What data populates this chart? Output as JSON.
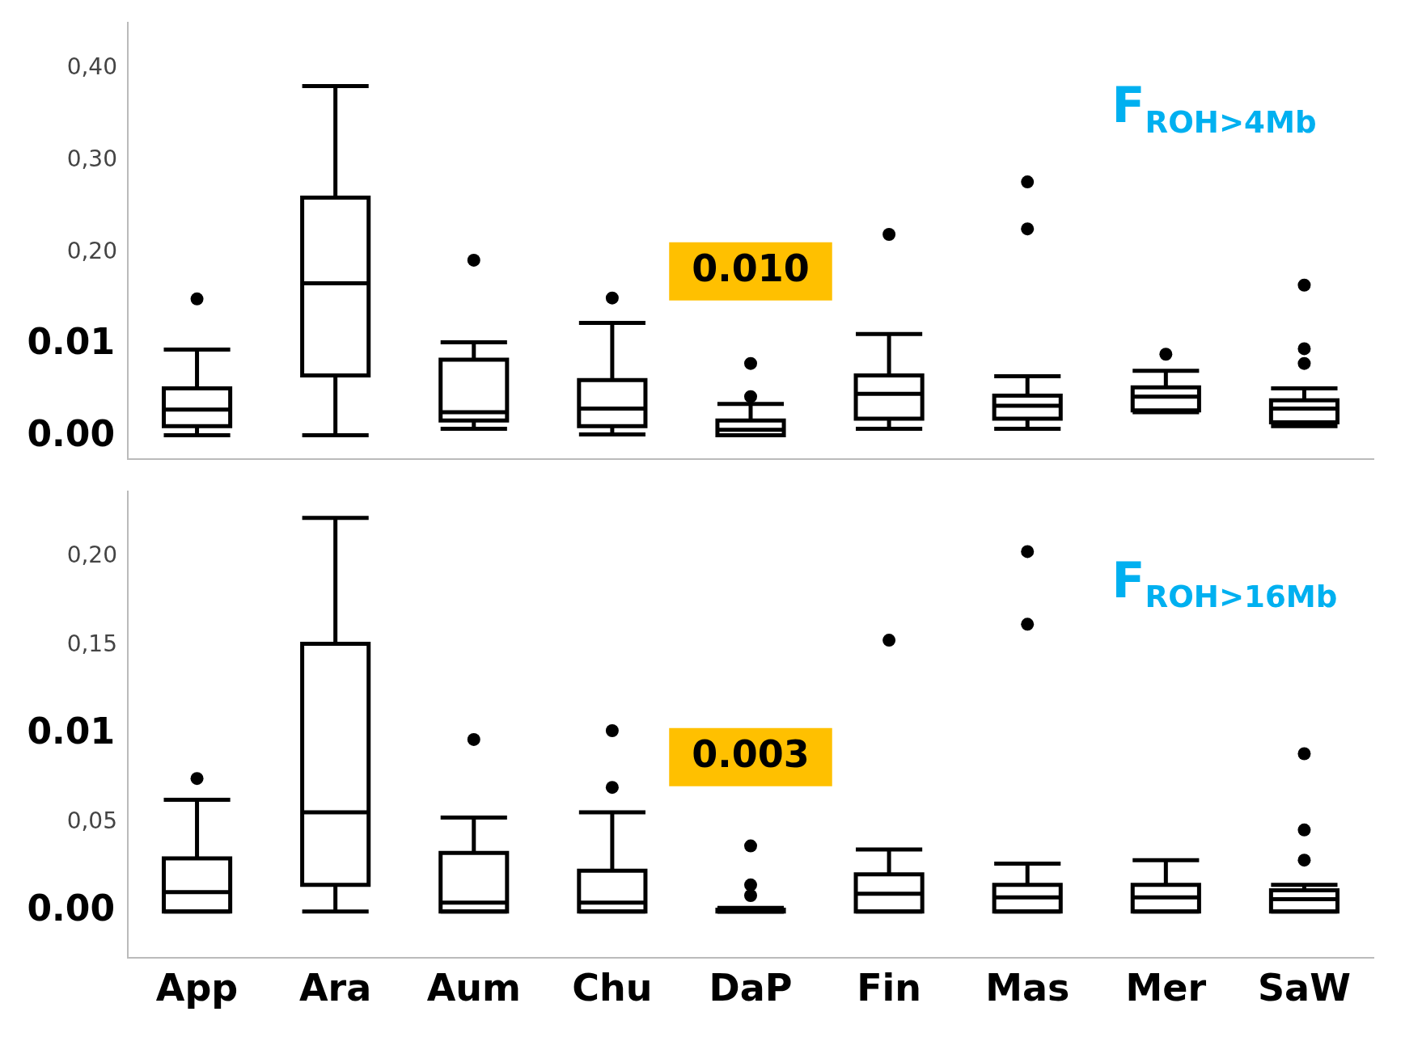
{
  "chart_data": [
    {
      "type": "box",
      "tick_labels": "y",
      "ylim": [
        -0.024,
        0.45
      ],
      "yticks": [
        {
          "value": 0.2,
          "label": "0,20"
        },
        {
          "value": 0.3,
          "label": "0,30"
        },
        {
          "value": 0.4,
          "label": "0,40"
        }
      ],
      "grid": false,
      "annotations": [
        "0.010",
        "F$_{ROH>4Mb}$",
        "0.01",
        "0.00"
      ],
      "boxes": [
        {
          "low": 0.002,
          "q1": 0.012,
          "median": 0.03,
          "q3": 0.053,
          "high": 0.095,
          "outliers": [
            0.15
          ]
        },
        {
          "low": 0.002,
          "q1": 0.067,
          "median": 0.167,
          "q3": 0.26,
          "high": 0.381
        },
        {
          "low": 0.009,
          "q1": 0.018,
          "median": 0.027,
          "q3": 0.084,
          "high": 0.103,
          "outliers": [
            0.192
          ]
        },
        {
          "low": 0.003,
          "q1": 0.012,
          "median": 0.031,
          "q3": 0.062,
          "high": 0.124,
          "outliers": [
            0.151
          ]
        },
        {
          "low": 0.002,
          "q1": 0.002,
          "median": 0.008,
          "q3": 0.018,
          "high": 0.036,
          "outliers": [
            0.08,
            0.044
          ]
        },
        {
          "low": 0.009,
          "q1": 0.02,
          "median": 0.047,
          "q3": 0.067,
          "high": 0.112,
          "outliers": [
            0.22
          ]
        },
        {
          "low": 0.009,
          "q1": 0.02,
          "median": 0.034,
          "q3": 0.045,
          "high": 0.066,
          "outliers": [
            0.226,
            0.277
          ]
        },
        {
          "low": 0.027,
          "q1": 0.029,
          "median": 0.044,
          "q3": 0.054,
          "high": 0.072,
          "outliers": [
            0.09
          ]
        },
        {
          "low": 0.012,
          "q1": 0.016,
          "median": 0.031,
          "q3": 0.04,
          "high": 0.053,
          "outliers": [
            0.165,
            0.096,
            0.08
          ]
        }
      ]
    },
    {
      "type": "box",
      "categories": [
        "App",
        "Ara",
        "Aum",
        "Chu",
        "DaP",
        "Fin",
        "Mas",
        "Mer",
        "SaW"
      ],
      "ylim": [
        -0.026,
        0.237
      ],
      "yticks": [
        {
          "value": 0.05,
          "label": "0,05"
        },
        {
          "value": 0.15,
          "label": "0,15"
        },
        {
          "value": 0.2,
          "label": "0,20"
        }
      ],
      "grid": false,
      "annotations": [
        "0.003",
        "F$_{ROH>16Mb}$",
        "0.01",
        "0.00"
      ],
      "boxes": [
        {
          "low": 0,
          "q1": 0,
          "median": 0.011,
          "q3": 0.03,
          "high": 0.063,
          "outliers": [
            0.075
          ]
        },
        {
          "low": 0,
          "q1": 0.015,
          "median": 0.056,
          "q3": 0.151,
          "high": 0.222
        },
        {
          "low": 0,
          "q1": 0,
          "median": 0.005,
          "q3": 0.033,
          "high": 0.053,
          "outliers": [
            0.097
          ]
        },
        {
          "low": 0,
          "q1": 0,
          "median": 0.005,
          "q3": 0.023,
          "high": 0.056,
          "outliers": [
            0.102,
            0.07
          ]
        },
        {
          "low": 0,
          "q1": 0,
          "median": 0,
          "q3": 0.001,
          "high": 0.002,
          "outliers": [
            0.037,
            0.015,
            0.009
          ]
        },
        {
          "low": 0,
          "q1": 0,
          "median": 0.01,
          "q3": 0.021,
          "high": 0.035,
          "outliers": [
            0.153
          ]
        },
        {
          "low": 0,
          "q1": 0,
          "median": 0.008,
          "q3": 0.015,
          "high": 0.027,
          "outliers": [
            0.162,
            0.203
          ]
        },
        {
          "low": 0,
          "q1": 0,
          "median": 0.008,
          "q3": 0.015,
          "high": 0.029
        },
        {
          "low": 0,
          "q1": 0,
          "median": 0.007,
          "q3": 0.012,
          "high": 0.015,
          "outliers": [
            0.089,
            0.046,
            0.029
          ]
        }
      ]
    }
  ]
}
